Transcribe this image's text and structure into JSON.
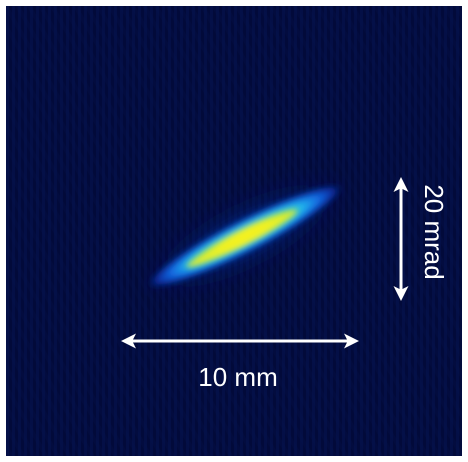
{
  "image": {
    "background_color": "#020a3a",
    "frame_color": "#ffffff",
    "beam_colormap": [
      "#02124e",
      "#0a3fc4",
      "#1f8cf0",
      "#34c8e6",
      "#9be05a",
      "#f7f21e"
    ]
  },
  "scale_bars": {
    "horizontal": {
      "label": "10 mm",
      "color": "#ffffff"
    },
    "vertical": {
      "label": "20 mrad",
      "color": "#ffffff"
    }
  }
}
